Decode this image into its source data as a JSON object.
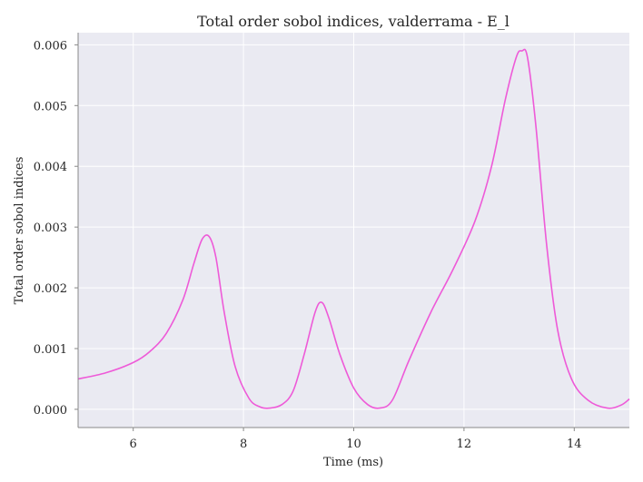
{
  "chart_data": {
    "type": "line",
    "title": "Total order sobol indices, valderrama - E_l",
    "xlabel": "Time (ms)",
    "ylabel": "Total order sobol indices",
    "xlim": [
      5.0,
      15.0
    ],
    "ylim": [
      -0.0003,
      0.0062
    ],
    "xticks": [
      6,
      8,
      10,
      12,
      14
    ],
    "xtick_labels": [
      "6",
      "8",
      "10",
      "12",
      "14"
    ],
    "yticks": [
      0.0,
      0.001,
      0.002,
      0.003,
      0.004,
      0.005,
      0.006
    ],
    "ytick_labels": [
      "0.000",
      "0.001",
      "0.002",
      "0.003",
      "0.004",
      "0.005",
      "0.006"
    ],
    "grid": true,
    "background": "#eaeaf2",
    "grid_color": "#ffffff",
    "series": [
      {
        "color": "#ee5ad8",
        "x": [
          5.0,
          5.5,
          6.0,
          6.3,
          6.6,
          6.9,
          7.1,
          7.25,
          7.38,
          7.5,
          7.65,
          7.85,
          8.1,
          8.3,
          8.48,
          8.7,
          8.9,
          9.1,
          9.3,
          9.42,
          9.55,
          9.75,
          10.0,
          10.25,
          10.47,
          10.7,
          11.0,
          11.4,
          11.8,
          12.2,
          12.5,
          12.75,
          12.95,
          13.05,
          13.15,
          13.3,
          13.5,
          13.7,
          13.95,
          14.25,
          14.6,
          14.85,
          15.0
        ],
        "y": [
          0.0005,
          0.0006,
          0.00077,
          0.00095,
          0.00125,
          0.0018,
          0.0024,
          0.0028,
          0.00284,
          0.0025,
          0.0016,
          0.0007,
          0.00018,
          4e-05,
          2e-05,
          8e-05,
          0.0003,
          0.0009,
          0.0016,
          0.00176,
          0.0015,
          0.0009,
          0.00035,
          8e-05,
          2e-05,
          0.00015,
          0.0008,
          0.0016,
          0.0023,
          0.0031,
          0.004,
          0.0051,
          0.0058,
          0.0059,
          0.0058,
          0.0047,
          0.0027,
          0.0013,
          0.0005,
          0.00015,
          2e-05,
          7e-05,
          0.00017
        ]
      }
    ]
  }
}
